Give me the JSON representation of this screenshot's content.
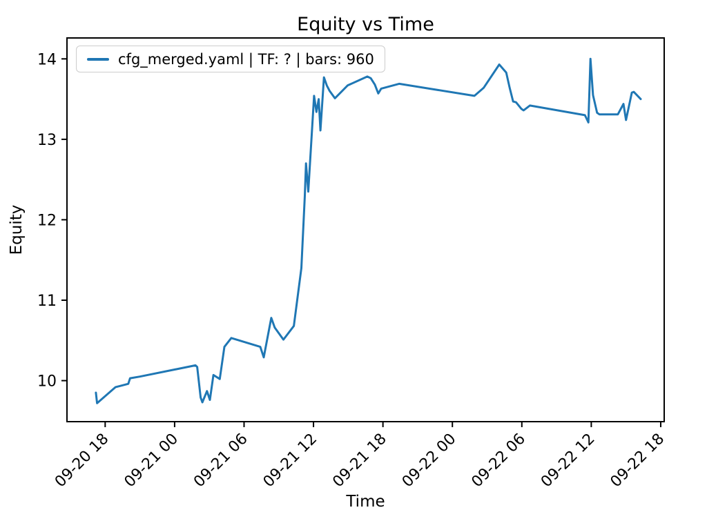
{
  "chart_data": {
    "type": "line",
    "title": "Equity vs Time",
    "xlabel": "Time",
    "ylabel": "Equity",
    "legend": {
      "label": "cfg_merged.yaml | TF: ? | bars: 960",
      "position": "upper-left"
    },
    "colors": {
      "line": "#1f77b4",
      "spines": "#000000",
      "tick_text": "#000000",
      "legend_border": "#cccccc",
      "background": "#ffffff"
    },
    "grid": false,
    "x_units": "hours_after_09-20_18:00",
    "xlim": [
      -3.3,
      48.3
    ],
    "ylim": [
      9.49,
      14.26
    ],
    "x_ticks": [
      {
        "value": 0,
        "label": "09-20 18"
      },
      {
        "value": 6,
        "label": "09-21 00"
      },
      {
        "value": 12,
        "label": "09-21 06"
      },
      {
        "value": 18,
        "label": "09-21 12"
      },
      {
        "value": 24,
        "label": "09-21 18"
      },
      {
        "value": 30,
        "label": "09-22 00"
      },
      {
        "value": 36,
        "label": "09-22 06"
      },
      {
        "value": 42,
        "label": "09-22 12"
      },
      {
        "value": 48,
        "label": "09-22 18"
      }
    ],
    "y_ticks": [
      {
        "value": 10,
        "label": "10"
      },
      {
        "value": 11,
        "label": "11"
      },
      {
        "value": 12,
        "label": "12"
      },
      {
        "value": 13,
        "label": "13"
      },
      {
        "value": 14,
        "label": "14"
      }
    ],
    "series": [
      {
        "name": "cfg_merged.yaml | TF: ? | bars: 960",
        "points": [
          [
            -0.8,
            9.85
          ],
          [
            -0.7,
            9.72
          ],
          [
            0.9,
            9.92
          ],
          [
            1.2,
            9.93
          ],
          [
            2.0,
            9.96
          ],
          [
            2.15,
            10.03
          ],
          [
            3.0,
            10.05
          ],
          [
            7.8,
            10.19
          ],
          [
            7.95,
            10.17
          ],
          [
            8.25,
            9.79
          ],
          [
            8.4,
            9.73
          ],
          [
            8.8,
            9.87
          ],
          [
            9.05,
            9.76
          ],
          [
            9.35,
            10.07
          ],
          [
            9.9,
            10.02
          ],
          [
            10.3,
            10.42
          ],
          [
            10.9,
            10.53
          ],
          [
            13.4,
            10.42
          ],
          [
            13.7,
            10.29
          ],
          [
            14.35,
            10.78
          ],
          [
            14.65,
            10.66
          ],
          [
            15.4,
            10.51
          ],
          [
            16.3,
            10.68
          ],
          [
            16.95,
            11.4
          ],
          [
            17.25,
            12.3
          ],
          [
            17.35,
            12.7
          ],
          [
            17.55,
            12.35
          ],
          [
            18.05,
            13.54
          ],
          [
            18.25,
            13.34
          ],
          [
            18.45,
            13.5
          ],
          [
            18.6,
            13.11
          ],
          [
            18.9,
            13.77
          ],
          [
            19.15,
            13.67
          ],
          [
            19.4,
            13.6
          ],
          [
            19.85,
            13.51
          ],
          [
            20.95,
            13.67
          ],
          [
            22.65,
            13.78
          ],
          [
            22.95,
            13.76
          ],
          [
            23.3,
            13.68
          ],
          [
            23.6,
            13.57
          ],
          [
            23.85,
            13.63
          ],
          [
            25.4,
            13.69
          ],
          [
            31.9,
            13.54
          ],
          [
            32.7,
            13.64
          ],
          [
            34.05,
            13.93
          ],
          [
            34.65,
            13.83
          ],
          [
            34.95,
            13.64
          ],
          [
            35.25,
            13.47
          ],
          [
            35.5,
            13.46
          ],
          [
            35.95,
            13.38
          ],
          [
            36.15,
            13.36
          ],
          [
            36.7,
            13.42
          ],
          [
            41.45,
            13.3
          ],
          [
            41.75,
            13.21
          ],
          [
            41.93,
            14.0
          ],
          [
            42.15,
            13.55
          ],
          [
            42.5,
            13.33
          ],
          [
            42.7,
            13.31
          ],
          [
            44.3,
            13.31
          ],
          [
            44.78,
            13.44
          ],
          [
            45.0,
            13.24
          ],
          [
            45.5,
            13.58
          ],
          [
            45.67,
            13.59
          ],
          [
            46.27,
            13.5
          ]
        ]
      }
    ]
  }
}
